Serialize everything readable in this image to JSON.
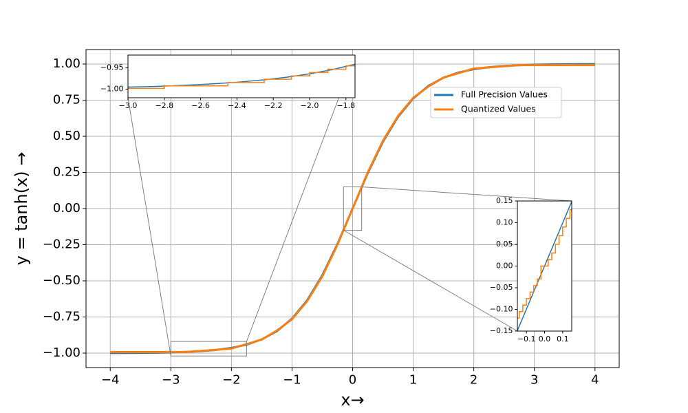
{
  "chart_data": [
    {
      "type": "line",
      "xlabel": "x→",
      "ylabel": "y = tanh(x) →",
      "grid": true,
      "xlim": [
        -4.4,
        4.4
      ],
      "ylim": [
        -1.1,
        1.1
      ],
      "xticks": [
        {
          "value": -4,
          "label": "−4"
        },
        {
          "value": -3,
          "label": "−3"
        },
        {
          "value": -2,
          "label": "−2"
        },
        {
          "value": -1,
          "label": "−1"
        },
        0,
        1,
        2,
        3,
        4
      ],
      "yticks": [
        {
          "value": -1,
          "label": "−1.00"
        },
        {
          "value": -0.75,
          "label": "−0.75"
        },
        {
          "value": -0.5,
          "label": "−0.50"
        },
        {
          "value": -0.25,
          "label": "−0.25"
        },
        {
          "value": 0,
          "label": "0.00"
        },
        {
          "value": 0.25,
          "label": "0.25"
        },
        {
          "value": 0.5,
          "label": "0.50"
        },
        {
          "value": 0.75,
          "label": "0.75"
        },
        {
          "value": 1,
          "label": "1.00"
        }
      ],
      "series": [
        {
          "name": "Full Precision Values",
          "color": "#1f77b4",
          "x": [
            -4,
            -3.75,
            -3.5,
            -3.25,
            -3,
            -2.75,
            -2.5,
            -2.25,
            -2,
            -1.75,
            -1.5,
            -1.25,
            -1,
            -0.75,
            -0.5,
            -0.25,
            0,
            0.25,
            0.5,
            0.75,
            1,
            1.25,
            1.5,
            1.75,
            2,
            2.25,
            2.5,
            2.75,
            3,
            3.25,
            3.5,
            3.75,
            4
          ],
          "values": [
            -0.9993,
            -0.9989,
            -0.9982,
            -0.997,
            -0.9951,
            -0.9919,
            -0.9866,
            -0.978,
            -0.964,
            -0.9414,
            -0.9051,
            -0.8483,
            -0.7616,
            -0.6351,
            -0.4621,
            -0.2449,
            0,
            0.2449,
            0.4621,
            0.6351,
            0.7616,
            0.8483,
            0.9051,
            0.9414,
            0.964,
            0.978,
            0.9866,
            0.9919,
            0.9951,
            0.997,
            0.9982,
            0.9989,
            0.9993
          ]
        },
        {
          "name": "Quantized Values",
          "color": "#ff7f0e",
          "x": [
            -4,
            -3.75,
            -3.5,
            -3.25,
            -3,
            -2.75,
            -2.5,
            -2.25,
            -2,
            -1.75,
            -1.5,
            -1.25,
            -1,
            -0.75,
            -0.5,
            -0.25,
            0,
            0.25,
            0.5,
            0.75,
            1,
            1.25,
            1.5,
            1.75,
            2,
            2.25,
            2.5,
            2.75,
            3,
            3.25,
            3.5,
            3.75,
            4
          ],
          "values": [
            -0.9922,
            -0.9922,
            -0.9922,
            -0.9922,
            -0.9922,
            -0.9922,
            -0.9844,
            -0.9766,
            -0.9688,
            -0.9375,
            -0.9063,
            -0.8438,
            -0.7656,
            -0.6406,
            -0.4688,
            -0.25,
            0,
            0.25,
            0.4688,
            0.6406,
            0.7656,
            0.8438,
            0.9063,
            0.9375,
            0.9688,
            0.9766,
            0.9844,
            0.9922,
            0.9922,
            0.9922,
            0.9922,
            0.9922,
            0.9922
          ]
        }
      ]
    },
    {
      "type": "line",
      "xlim": [
        -3.0,
        -1.75
      ],
      "ylim": [
        -1.02,
        -0.92
      ],
      "xticks": [
        {
          "value": -3.0,
          "label": "−3.0"
        },
        {
          "value": -2.8,
          "label": "−2.8"
        },
        {
          "value": -2.6,
          "label": "−2.6"
        },
        {
          "value": -2.4,
          "label": "−2.4"
        },
        {
          "value": -2.2,
          "label": "−2.2"
        },
        {
          "value": -2.0,
          "label": "−2.0"
        },
        {
          "value": -1.8,
          "label": "−1.8"
        }
      ],
      "yticks": [
        {
          "value": -1.0,
          "label": "−1.00"
        },
        {
          "value": -0.95,
          "label": "−0.95"
        }
      ],
      "series": [
        {
          "color": "#1f77b4",
          "x": [
            -3,
            -2.875,
            -2.75,
            -2.625,
            -2.5,
            -2.375,
            -2.25,
            -2.125,
            -2,
            -1.875,
            -1.75
          ],
          "values": [
            -0.9951,
            -0.9937,
            -0.9919,
            -0.9896,
            -0.9866,
            -0.9828,
            -0.978,
            -0.9718,
            -0.964,
            -0.9541,
            -0.9414
          ]
        },
        {
          "color": "#ff7f0e",
          "x": [
            -3,
            -2.8,
            -2.8,
            -2.45,
            -2.45,
            -2.25,
            -2.25,
            -2.1,
            -2.1,
            -2.0,
            -2.0,
            -1.9,
            -1.9,
            -1.8,
            -1.8,
            -1.75
          ],
          "values": [
            -0.998,
            -0.998,
            -0.9922,
            -0.9922,
            -0.9844,
            -0.9844,
            -0.9766,
            -0.9766,
            -0.9688,
            -0.9688,
            -0.9609,
            -0.9609,
            -0.9531,
            -0.9531,
            -0.9453,
            -0.9453
          ]
        }
      ]
    },
    {
      "type": "line",
      "xlim": [
        -0.15,
        0.15
      ],
      "ylim": [
        -0.15,
        0.15
      ],
      "xticks": [
        {
          "value": -0.1,
          "label": "−0.1"
        },
        {
          "value": 0,
          "label": "0.0"
        },
        {
          "value": 0.1,
          "label": "0.1"
        }
      ],
      "yticks": [
        {
          "value": -0.15,
          "label": "−0.15"
        },
        {
          "value": -0.1,
          "label": "−0.10"
        },
        {
          "value": -0.05,
          "label": "−0.05"
        },
        {
          "value": 0,
          "label": "0.00"
        },
        {
          "value": 0.05,
          "label": "0.05"
        },
        {
          "value": 0.1,
          "label": "0.10"
        },
        {
          "value": 0.15,
          "label": "0.15"
        }
      ],
      "series": [
        {
          "color": "#1f77b4",
          "x": [
            -0.15,
            0,
            0.15
          ],
          "values": [
            -0.1489,
            0,
            0.1489
          ]
        },
        {
          "color": "#ff7f0e",
          "x": [
            -0.15,
            -0.14,
            -0.14,
            -0.12,
            -0.12,
            -0.1,
            -0.1,
            -0.08,
            -0.08,
            -0.06,
            -0.06,
            -0.04,
            -0.04,
            -0.02,
            -0.02,
            0.02,
            0.02,
            0.04,
            0.04,
            0.06,
            0.06,
            0.08,
            0.08,
            0.1,
            0.1,
            0.12,
            0.12,
            0.14,
            0.14,
            0.15
          ],
          "values": [
            -0.12,
            -0.12,
            -0.105,
            -0.105,
            -0.09,
            -0.09,
            -0.075,
            -0.075,
            -0.06,
            -0.06,
            -0.045,
            -0.045,
            -0.03,
            -0.03,
            0,
            0,
            0.015,
            0.015,
            0.03,
            0.03,
            0.05,
            0.05,
            0.07,
            0.07,
            0.09,
            0.09,
            0.11,
            0.11,
            0.13,
            0.13
          ]
        }
      ]
    }
  ]
}
